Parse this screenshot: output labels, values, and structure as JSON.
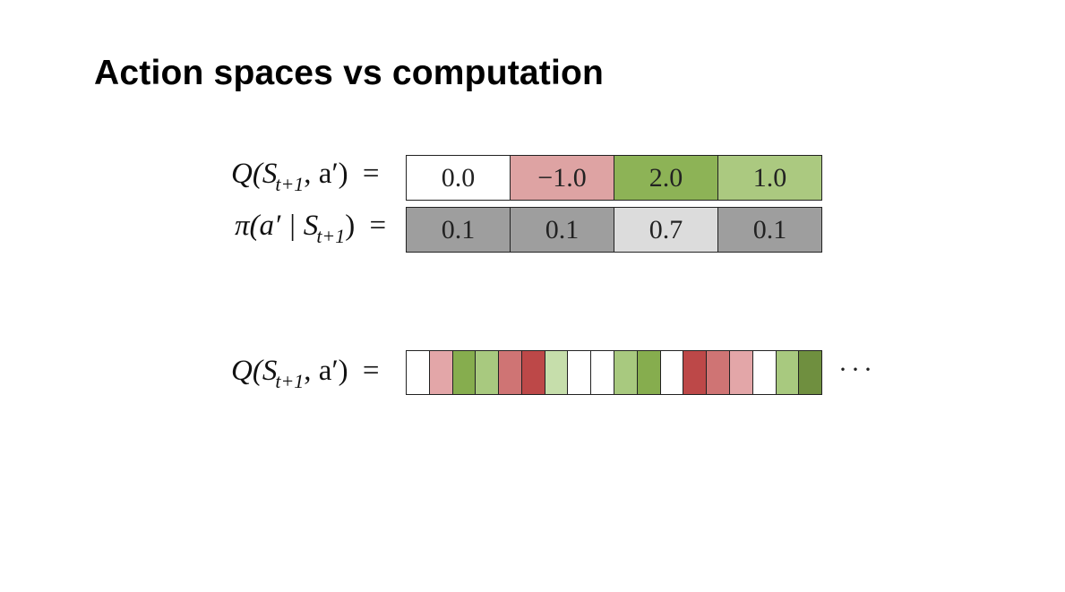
{
  "slide": {
    "title": "Action spaces vs computation"
  },
  "q_label": {
    "func": "Q(S",
    "sub": "t+1",
    "rest": ", a′) ",
    "eq": "="
  },
  "pi_label": {
    "func": "π(a′ | S",
    "sub": "t+1",
    "rest": ") ",
    "eq": "="
  },
  "q_label2": {
    "func": "Q(S",
    "sub": "t+1",
    "rest": ", a′) ",
    "eq": "="
  },
  "q_row": [
    {
      "value": "0.0",
      "color": "#ffffff"
    },
    {
      "value": "−1.0",
      "color": "#dea3a3"
    },
    {
      "value": "2.0",
      "color": "#8db356"
    },
    {
      "value": "1.0",
      "color": "#abc980"
    }
  ],
  "pi_row": [
    {
      "value": "0.1",
      "color": "#9e9e9e"
    },
    {
      "value": "0.1",
      "color": "#9e9e9e"
    },
    {
      "value": "0.7",
      "color": "#dcdcdc"
    },
    {
      "value": "0.1",
      "color": "#9e9e9e"
    }
  ],
  "strip_colors": [
    "#ffffff",
    "#e3a6a8",
    "#86ad4e",
    "#a8c97f",
    "#cf7474",
    "#bd4848",
    "#c6deab",
    "#ffffff",
    "#ffffff",
    "#a8c97f",
    "#86ad4e",
    "#ffffff",
    "#bd4848",
    "#cf7474",
    "#e3a6a8",
    "#ffffff",
    "#a8c97f",
    "#6f8f3f"
  ],
  "ellipsis": "···"
}
